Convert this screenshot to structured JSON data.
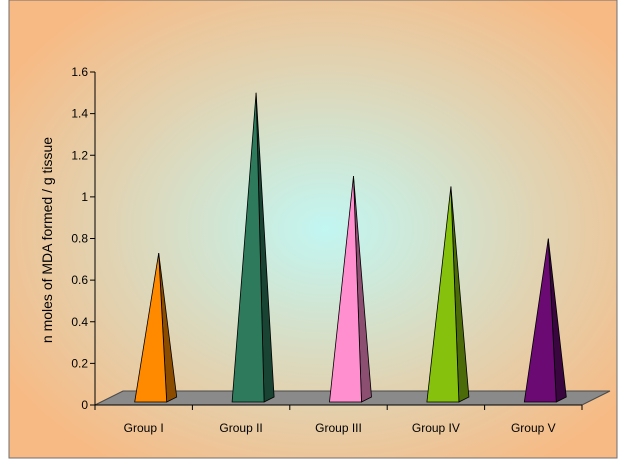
{
  "chart_data": {
    "type": "bar",
    "style": "3d-pyramid",
    "title": "",
    "xlabel": "",
    "ylabel": "n moles of MDA formed / g tissue",
    "categories": [
      "Group I",
      "Group II",
      "Group III",
      "Group IV",
      "Group V"
    ],
    "values": [
      0.73,
      1.5,
      1.1,
      1.05,
      0.8
    ],
    "colors": [
      "#ff8a00",
      "#2e7a5c",
      "#ff8fcf",
      "#86c20d",
      "#6a0a72"
    ],
    "ylim": [
      0,
      1.6
    ],
    "yticks": [
      "0",
      "0.2",
      "0.4",
      "0.6",
      "0.8",
      "1",
      "1.2",
      "1.4",
      "1.6"
    ],
    "grid": false,
    "legend": "none",
    "background_edge_color": "#f7ba84",
    "background_center_color": "#c2f6f2",
    "floor_color": "#8a8a8a"
  }
}
